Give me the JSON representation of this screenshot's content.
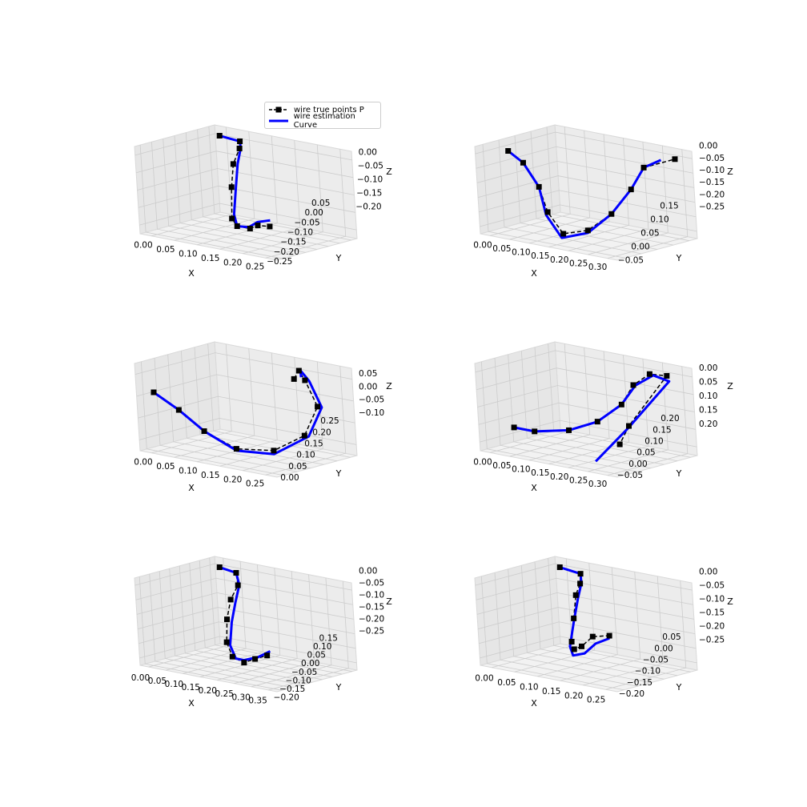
{
  "legend": {
    "true_label": "wire true points P",
    "est_label": "wire estimation Curve"
  },
  "colors": {
    "true": "#000000",
    "estimate": "#0000ff",
    "pane": "#f2f2f2",
    "grid": "#cccccc"
  },
  "chart_data": [
    {
      "type": "line3d",
      "name": "panel-1",
      "xlabel": "X",
      "ylabel": "Y",
      "zlabel": "Z",
      "xticks": [
        "0.00",
        "0.05",
        "0.10",
        "0.15",
        "0.20",
        "0.25"
      ],
      "yticks": [
        "−0.25",
        "−0.20",
        "−0.15",
        "−0.10",
        "−0.05",
        "0.00",
        "0.05"
      ],
      "zticks": [
        "0.00",
        "−0.05",
        "−0.10",
        "−0.15",
        "−0.20"
      ],
      "true_points": [
        [
          0.0,
          0.05,
          0.0
        ],
        [
          0.05,
          0.05,
          -0.005
        ],
        [
          0.06,
          0.03,
          -0.02
        ],
        [
          0.06,
          0.0,
          -0.06
        ],
        [
          0.07,
          -0.03,
          -0.12
        ],
        [
          0.09,
          -0.07,
          -0.2
        ],
        [
          0.12,
          -0.1,
          -0.21
        ],
        [
          0.17,
          -0.13,
          -0.2
        ],
        [
          0.22,
          -0.18,
          -0.17
        ],
        [
          0.28,
          -0.23,
          -0.15
        ]
      ],
      "estimate": [
        [
          0.0,
          0.05,
          0.0
        ],
        [
          0.05,
          0.05,
          -0.005
        ],
        [
          0.06,
          0.035,
          -0.02
        ],
        [
          0.065,
          0.01,
          -0.06
        ],
        [
          0.075,
          -0.02,
          -0.12
        ],
        [
          0.09,
          -0.06,
          -0.19
        ],
        [
          0.12,
          -0.1,
          -0.21
        ],
        [
          0.17,
          -0.135,
          -0.195
        ],
        [
          0.22,
          -0.18,
          -0.16
        ],
        [
          0.285,
          -0.235,
          -0.13
        ]
      ]
    },
    {
      "type": "line3d",
      "name": "panel-2",
      "xlabel": "X",
      "ylabel": "Y",
      "zlabel": "Z",
      "xticks": [
        "0.00",
        "0.05",
        "0.10",
        "0.15",
        "0.20",
        "0.25",
        "0.30"
      ],
      "yticks": [
        "−0.05",
        "0.00",
        "0.05",
        "0.10",
        "0.15"
      ],
      "zticks": [
        "0.00",
        "−0.05",
        "−0.10",
        "−0.15",
        "−0.20",
        "−0.25"
      ],
      "true_points": [
        [
          0.0,
          0.0,
          0.0
        ],
        [
          0.05,
          -0.01,
          -0.03
        ],
        [
          0.1,
          -0.02,
          -0.11
        ],
        [
          0.13,
          -0.03,
          -0.2
        ],
        [
          0.18,
          -0.04,
          -0.27
        ],
        [
          0.23,
          -0.02,
          -0.25
        ],
        [
          0.26,
          0.02,
          -0.19
        ],
        [
          0.28,
          0.06,
          -0.1
        ],
        [
          0.29,
          0.09,
          -0.02
        ],
        [
          0.32,
          0.15,
          0.0
        ]
      ],
      "estimate": [
        [
          0.0,
          0.0,
          0.0
        ],
        [
          0.05,
          -0.01,
          -0.03
        ],
        [
          0.1,
          -0.02,
          -0.11
        ],
        [
          0.13,
          -0.035,
          -0.21
        ],
        [
          0.18,
          -0.045,
          -0.285
        ],
        [
          0.23,
          -0.02,
          -0.26
        ],
        [
          0.26,
          0.02,
          -0.19
        ],
        [
          0.28,
          0.06,
          -0.1
        ],
        [
          0.29,
          0.09,
          -0.02
        ],
        [
          0.31,
          0.12,
          0.005
        ]
      ]
    },
    {
      "type": "line3d",
      "name": "panel-3",
      "xlabel": "X",
      "ylabel": "Y",
      "zlabel": "Z",
      "xticks": [
        "0.00",
        "0.05",
        "0.10",
        "0.15",
        "0.20",
        "0.25"
      ],
      "yticks": [
        "0.00",
        "0.05",
        "0.10",
        "0.15",
        "0.20",
        "0.25"
      ],
      "zticks": [
        "0.05",
        "0.00",
        "−0.05",
        "−0.10"
      ],
      "true_points": [
        [
          0.0,
          0.0,
          0.0
        ],
        [
          0.05,
          0.01,
          -0.04
        ],
        [
          0.1,
          0.02,
          -0.09
        ],
        [
          0.16,
          0.04,
          -0.13
        ],
        [
          0.22,
          0.08,
          -0.13
        ],
        [
          0.26,
          0.13,
          -0.09
        ],
        [
          0.26,
          0.18,
          -0.02
        ],
        [
          0.22,
          0.2,
          0.04
        ],
        [
          0.2,
          0.21,
          0.06
        ],
        [
          0.18,
          0.22,
          0.03
        ]
      ],
      "estimate": [
        [
          0.0,
          0.0,
          0.0
        ],
        [
          0.05,
          0.01,
          -0.04
        ],
        [
          0.1,
          0.02,
          -0.09
        ],
        [
          0.16,
          0.04,
          -0.135
        ],
        [
          0.22,
          0.08,
          -0.14
        ],
        [
          0.27,
          0.13,
          -0.09
        ],
        [
          0.27,
          0.18,
          -0.02
        ],
        [
          0.23,
          0.2,
          0.04
        ],
        [
          0.2,
          0.215,
          0.06
        ],
        [
          0.19,
          0.23,
          0.035
        ]
      ]
    },
    {
      "type": "line3d",
      "name": "panel-4",
      "xlabel": "X",
      "ylabel": "Y",
      "zlabel": "Z",
      "xticks": [
        "0.00",
        "0.05",
        "0.10",
        "0.15",
        "0.20",
        "0.25",
        "0.30"
      ],
      "yticks": [
        "−0.05",
        "0.00",
        "0.05",
        "0.10",
        "0.15",
        "0.20"
      ],
      "zticks": [
        "0.00",
        "0.05",
        "0.10",
        "0.15",
        "0.20"
      ],
      "true_points": [
        [
          0.0,
          0.0,
          0.0
        ],
        [
          0.05,
          0.0,
          0.0
        ],
        [
          0.12,
          0.02,
          0.02
        ],
        [
          0.17,
          0.05,
          0.06
        ],
        [
          0.21,
          0.08,
          0.13
        ],
        [
          0.22,
          0.11,
          0.2
        ],
        [
          0.24,
          0.14,
          0.24
        ],
        [
          0.26,
          0.17,
          0.23
        ],
        [
          0.21,
          0.1,
          0.04
        ],
        [
          0.28,
          -0.03,
          0.03
        ]
      ],
      "estimate": [
        [
          0.0,
          0.0,
          0.0
        ],
        [
          0.05,
          0.0,
          0.0
        ],
        [
          0.12,
          0.02,
          0.02
        ],
        [
          0.17,
          0.05,
          0.06
        ],
        [
          0.21,
          0.08,
          0.13
        ],
        [
          0.225,
          0.11,
          0.2
        ],
        [
          0.245,
          0.145,
          0.235
        ],
        [
          0.265,
          0.17,
          0.21
        ],
        [
          0.21,
          0.1,
          0.035
        ],
        [
          0.24,
          -0.06,
          -0.04
        ]
      ]
    },
    {
      "type": "line3d",
      "name": "panel-5",
      "xlabel": "X",
      "ylabel": "Y",
      "zlabel": "Z",
      "xticks": [
        "0.00",
        "0.05",
        "0.10",
        "0.15",
        "0.20",
        "0.25",
        "0.30",
        "0.35"
      ],
      "yticks": [
        "−0.20",
        "−0.15",
        "−0.10",
        "−0.05",
        "0.00",
        "0.05",
        "0.10",
        "0.15"
      ],
      "zticks": [
        "0.00",
        "−0.05",
        "−0.10",
        "−0.15",
        "−0.20",
        "−0.25"
      ],
      "true_points": [
        [
          0.0,
          0.05,
          0.0
        ],
        [
          0.05,
          0.05,
          -0.01
        ],
        [
          0.07,
          0.03,
          -0.05
        ],
        [
          0.07,
          0.0,
          -0.1
        ],
        [
          0.08,
          -0.03,
          -0.17
        ],
        [
          0.1,
          -0.06,
          -0.25
        ],
        [
          0.14,
          -0.09,
          -0.29
        ],
        [
          0.2,
          -0.12,
          -0.29
        ],
        [
          0.26,
          -0.15,
          -0.25
        ],
        [
          0.34,
          -0.2,
          -0.2
        ]
      ],
      "estimate": [
        [
          0.0,
          0.05,
          0.0
        ],
        [
          0.05,
          0.05,
          -0.01
        ],
        [
          0.07,
          0.035,
          -0.05
        ],
        [
          0.08,
          0.005,
          -0.11
        ],
        [
          0.09,
          -0.025,
          -0.18
        ],
        [
          0.11,
          -0.06,
          -0.26
        ],
        [
          0.15,
          -0.09,
          -0.295
        ],
        [
          0.2,
          -0.12,
          -0.28
        ],
        [
          0.27,
          -0.15,
          -0.24
        ],
        [
          0.35,
          -0.2,
          -0.18
        ]
      ]
    },
    {
      "type": "line3d",
      "name": "panel-6",
      "xlabel": "X",
      "ylabel": "Y",
      "zlabel": "Z",
      "xticks": [
        "0.00",
        "0.05",
        "0.10",
        "0.15",
        "0.20",
        "0.25"
      ],
      "yticks": [
        "−0.20",
        "−0.15",
        "−0.10",
        "−0.05",
        "0.00",
        "0.05"
      ],
      "zticks": [
        "0.00",
        "−0.05",
        "−0.10",
        "−0.15",
        "−0.20",
        "−0.25"
      ],
      "true_points": [
        [
          0.0,
          0.05,
          0.0
        ],
        [
          0.05,
          0.05,
          -0.01
        ],
        [
          0.06,
          0.03,
          -0.04
        ],
        [
          0.06,
          0.01,
          -0.08
        ],
        [
          0.07,
          -0.02,
          -0.16
        ],
        [
          0.08,
          -0.05,
          -0.24
        ],
        [
          0.11,
          -0.09,
          -0.25
        ],
        [
          0.16,
          -0.14,
          -0.21
        ],
        [
          0.22,
          -0.19,
          -0.14
        ],
        [
          0.28,
          -0.22,
          -0.11
        ]
      ],
      "estimate": [
        [
          0.0,
          0.05,
          0.0
        ],
        [
          0.05,
          0.05,
          -0.01
        ],
        [
          0.06,
          0.035,
          -0.04
        ],
        [
          0.065,
          0.01,
          -0.09
        ],
        [
          0.07,
          -0.02,
          -0.17
        ],
        [
          0.075,
          -0.05,
          -0.26
        ],
        [
          0.1,
          -0.08,
          -0.28
        ],
        [
          0.16,
          -0.13,
          -0.24
        ],
        [
          0.22,
          -0.18,
          -0.17
        ],
        [
          0.28,
          -0.22,
          -0.12
        ]
      ]
    }
  ]
}
